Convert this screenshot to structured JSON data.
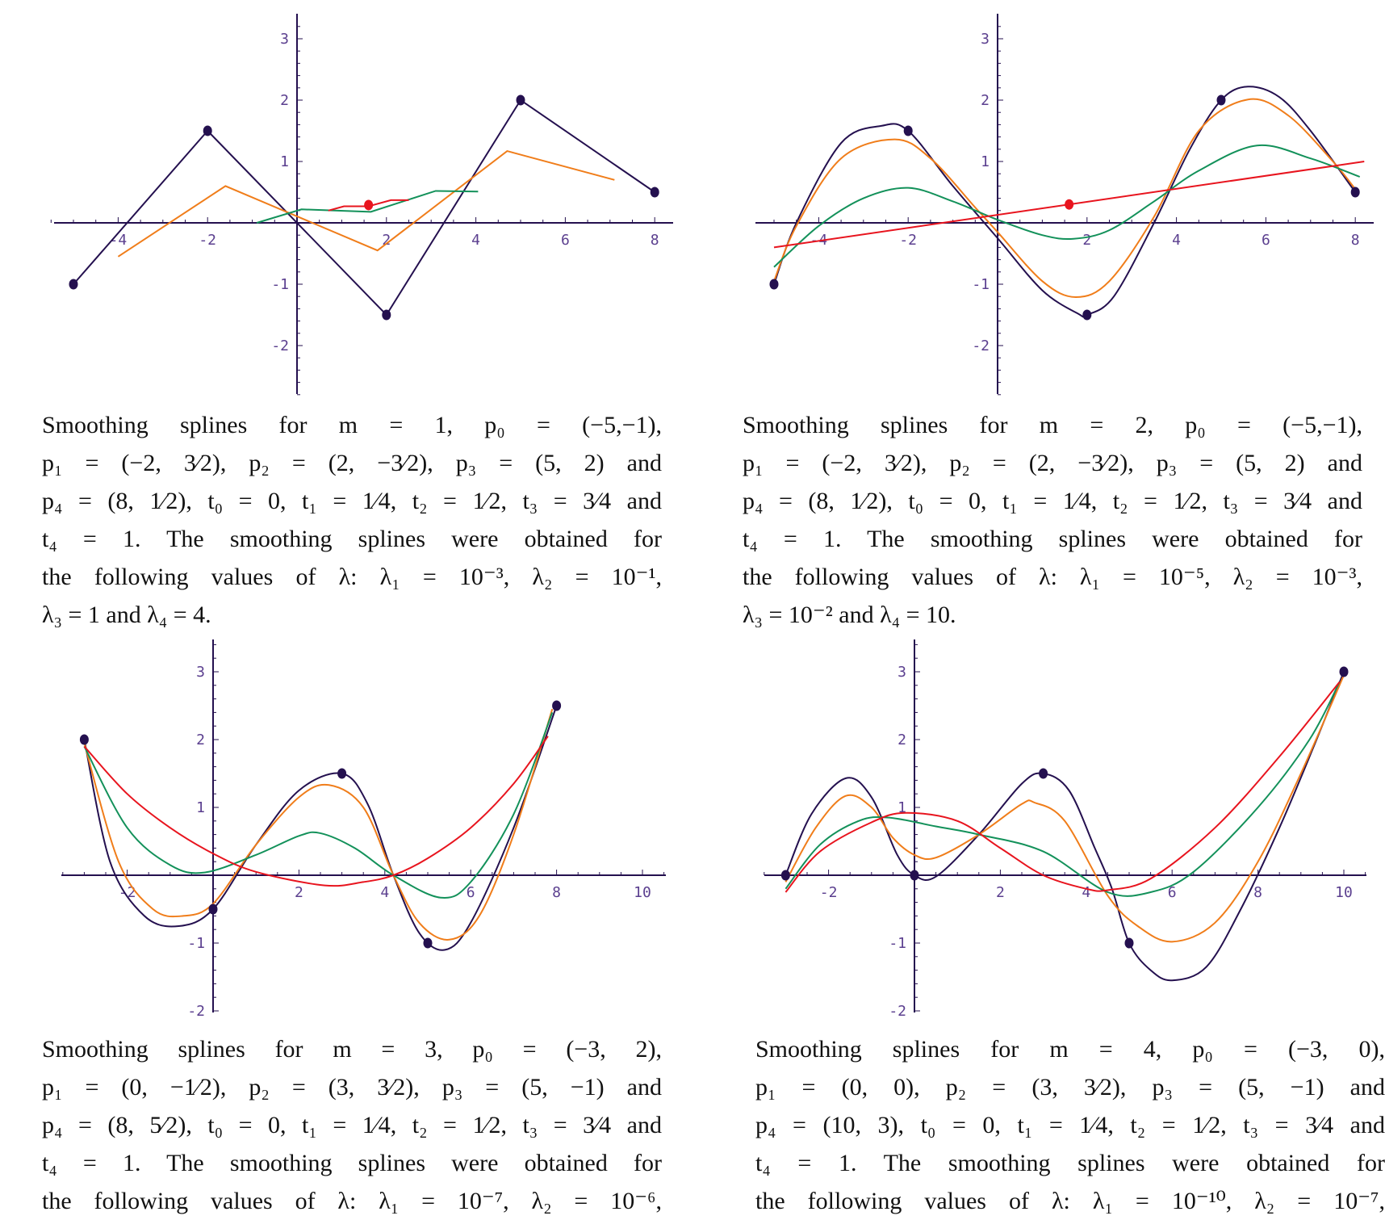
{
  "colors": {
    "data_points": "#24104f",
    "lambda1": "#24104f",
    "lambda2": "#f07d1a",
    "lambda3": "#13915a",
    "lambda4": "#e8141e",
    "axis": "#24104f",
    "tick_label": "#5b3f8f"
  },
  "chart_data": [
    {
      "type": "line",
      "interpolation": "linear",
      "xticks": [
        "-4",
        "-2",
        "2",
        "4",
        "6",
        "8"
      ],
      "xtick_values": [
        -4,
        -2,
        2,
        4,
        6,
        8
      ],
      "yticks": [
        "3",
        "2",
        "1",
        "-1",
        "-2"
      ],
      "ytick_values": [
        3,
        2,
        1,
        -1,
        -2
      ],
      "xlim": [
        -5.5,
        8.3
      ],
      "ylim": [
        -2.8,
        3.4
      ],
      "grid": false,
      "data_points": [
        [
          -5,
          -1
        ],
        [
          -2,
          1.5
        ],
        [
          2,
          -1.5
        ],
        [
          5,
          2
        ],
        [
          8,
          0.5
        ]
      ],
      "highlight_point": [
        1.6,
        0.29
      ],
      "series": [
        {
          "color_key": "lambda1",
          "points": [
            [
              -5,
              -1
            ],
            [
              -2,
              1.5
            ],
            [
              2,
              -1.5
            ],
            [
              5,
              2
            ],
            [
              8,
              0.5
            ]
          ]
        },
        {
          "color_key": "lambda2",
          "points": [
            [
              -4,
              -0.55
            ],
            [
              -1.6,
              0.6
            ],
            [
              1.8,
              -0.45
            ],
            [
              4.7,
              1.17
            ],
            [
              7.1,
              0.7
            ]
          ]
        },
        {
          "color_key": "lambda3",
          "points": [
            [
              -0.9,
              0
            ],
            [
              0.1,
              0.22
            ],
            [
              1.65,
              0.18
            ],
            [
              3.1,
              0.52
            ],
            [
              4.05,
              0.51
            ]
          ]
        },
        {
          "color_key": "lambda4",
          "points": [
            [
              0.7,
              0.2
            ],
            [
              1.05,
              0.27
            ],
            [
              1.6,
              0.27
            ],
            [
              2.1,
              0.37
            ],
            [
              2.5,
              0.37
            ]
          ]
        }
      ]
    },
    {
      "type": "line",
      "interpolation": "smooth",
      "xticks": [
        "-4",
        "-2",
        "2",
        "4",
        "6",
        "8"
      ],
      "xtick_values": [
        -4,
        -2,
        2,
        4,
        6,
        8
      ],
      "yticks": [
        "3",
        "2",
        "1",
        "-1",
        "-2"
      ],
      "ytick_values": [
        3,
        2,
        1,
        -1,
        -2
      ],
      "xlim": [
        -5.4,
        8.3
      ],
      "ylim": [
        -2.8,
        3.4
      ],
      "grid": false,
      "data_points": [
        [
          -5,
          -1
        ],
        [
          -2,
          1.5
        ],
        [
          2,
          -1.5
        ],
        [
          5,
          2
        ],
        [
          8,
          0.5
        ]
      ],
      "highlight_point": [
        1.6,
        0.3
      ],
      "series": [
        {
          "color_key": "lambda1",
          "points": [
            [
              -5,
              -1
            ],
            [
              -4.5,
              0
            ],
            [
              -3.5,
              1.3
            ],
            [
              -2.6,
              1.58
            ],
            [
              -2,
              1.5
            ],
            [
              -1,
              0.6
            ],
            [
              0,
              -0.25
            ],
            [
              1,
              -1.1
            ],
            [
              1.8,
              -1.48
            ],
            [
              2,
              -1.5
            ],
            [
              2.6,
              -1.2
            ],
            [
              3.5,
              0
            ],
            [
              4.3,
              1.2
            ],
            [
              5,
              2
            ],
            [
              5.6,
              2.22
            ],
            [
              6.3,
              2.05
            ],
            [
              7,
              1.5
            ],
            [
              8,
              0.5
            ]
          ]
        },
        {
          "color_key": "lambda2",
          "points": [
            [
              -5,
              -0.95
            ],
            [
              -4.5,
              -0.05
            ],
            [
              -3.5,
              1.05
            ],
            [
              -2.3,
              1.36
            ],
            [
              -1.5,
              1.05
            ],
            [
              -0.5,
              0.25
            ],
            [
              0,
              -0.15
            ],
            [
              1,
              -0.95
            ],
            [
              1.75,
              -1.21
            ],
            [
              2.5,
              -0.95
            ],
            [
              3.5,
              0.1
            ],
            [
              4.5,
              1.5
            ],
            [
              5.6,
              2.01
            ],
            [
              6.5,
              1.75
            ],
            [
              7.5,
              1.0
            ],
            [
              8,
              0.55
            ]
          ]
        },
        {
          "color_key": "lambda3",
          "points": [
            [
              -5,
              -0.72
            ],
            [
              -4,
              -0.05
            ],
            [
              -3,
              0.4
            ],
            [
              -2,
              0.57
            ],
            [
              -1,
              0.35
            ],
            [
              0,
              0.05
            ],
            [
              1,
              -0.2
            ],
            [
              1.7,
              -0.26
            ],
            [
              2.5,
              -0.12
            ],
            [
              3.5,
              0.35
            ],
            [
              4.5,
              0.85
            ],
            [
              5.8,
              1.26
            ],
            [
              7,
              1.05
            ],
            [
              8.1,
              0.75
            ]
          ]
        },
        {
          "color_key": "lambda4",
          "points": [
            [
              -5,
              -0.4
            ],
            [
              8.2,
              1.0
            ]
          ]
        }
      ]
    },
    {
      "type": "line",
      "interpolation": "smooth",
      "xticks": [
        "-2",
        "2",
        "4",
        "6",
        "8",
        "10"
      ],
      "xtick_values": [
        -2,
        2,
        4,
        6,
        8,
        10
      ],
      "yticks": [
        "3",
        "2",
        "1",
        "-1",
        "-2"
      ],
      "ytick_values": [
        3,
        2,
        1,
        -1,
        -2
      ],
      "xlim": [
        -3.5,
        10.5
      ],
      "ylim": [
        -2,
        3.5
      ],
      "grid": false,
      "data_points": [
        [
          -3,
          2
        ],
        [
          0,
          -0.5
        ],
        [
          3,
          1.5
        ],
        [
          5,
          -1
        ],
        [
          8,
          2.5
        ]
      ],
      "series": [
        {
          "color_key": "lambda1",
          "points": [
            [
              -3,
              2
            ],
            [
              -2.4,
              0.2
            ],
            [
              -1.6,
              -0.6
            ],
            [
              -0.8,
              -0.75
            ],
            [
              0,
              -0.5
            ],
            [
              1,
              0.45
            ],
            [
              2,
              1.25
            ],
            [
              3,
              1.5
            ],
            [
              3.6,
              1.05
            ],
            [
              4.2,
              0
            ],
            [
              4.8,
              -0.85
            ],
            [
              5.4,
              -1.1
            ],
            [
              6,
              -0.7
            ],
            [
              7,
              0.7
            ],
            [
              8,
              2.5
            ]
          ]
        },
        {
          "color_key": "lambda2",
          "points": [
            [
              -3,
              1.95
            ],
            [
              -2.2,
              0.2
            ],
            [
              -1.4,
              -0.5
            ],
            [
              -0.7,
              -0.6
            ],
            [
              0,
              -0.42
            ],
            [
              1,
              0.45
            ],
            [
              2,
              1.15
            ],
            [
              2.7,
              1.33
            ],
            [
              3.5,
              1.0
            ],
            [
              4.2,
              0
            ],
            [
              4.8,
              -0.7
            ],
            [
              5.5,
              -0.95
            ],
            [
              6.2,
              -0.6
            ],
            [
              7,
              0.6
            ],
            [
              7.9,
              2.45
            ]
          ]
        },
        {
          "color_key": "lambda3",
          "points": [
            [
              -3,
              1.9
            ],
            [
              -2,
              0.7
            ],
            [
              -1,
              0.15
            ],
            [
              -0.2,
              0.04
            ],
            [
              1,
              0.3
            ],
            [
              2,
              0.58
            ],
            [
              2.5,
              0.62
            ],
            [
              3.3,
              0.4
            ],
            [
              4.2,
              0
            ],
            [
              5.3,
              -0.33
            ],
            [
              6,
              -0.1
            ],
            [
              7,
              0.9
            ],
            [
              7.9,
              2.4
            ]
          ]
        },
        {
          "color_key": "lambda4",
          "points": [
            [
              -3,
              1.9
            ],
            [
              -2,
              1.2
            ],
            [
              -1,
              0.7
            ],
            [
              0,
              0.32
            ],
            [
              1,
              0.05
            ],
            [
              2.6,
              -0.15
            ],
            [
              3.5,
              -0.1
            ],
            [
              4.2,
              0
            ],
            [
              5,
              0.25
            ],
            [
              6,
              0.7
            ],
            [
              7,
              1.35
            ],
            [
              7.8,
              2.05
            ]
          ]
        }
      ]
    },
    {
      "type": "line",
      "interpolation": "smooth",
      "xticks": [
        "-2",
        "2",
        "4",
        "6",
        "8",
        "10"
      ],
      "xtick_values": [
        -2,
        2,
        4,
        6,
        8,
        10
      ],
      "yticks": [
        "3",
        "2",
        "1",
        "-1",
        "-2"
      ],
      "ytick_values": [
        3,
        2,
        1,
        -1,
        -2
      ],
      "xlim": [
        -3.6,
        10.6
      ],
      "ylim": [
        -2,
        3.5
      ],
      "grid": false,
      "data_points": [
        [
          -3,
          0
        ],
        [
          0,
          0
        ],
        [
          3,
          1.5
        ],
        [
          5,
          -1
        ],
        [
          10,
          3
        ]
      ],
      "series": [
        {
          "color_key": "lambda1",
          "points": [
            [
              -3,
              0
            ],
            [
              -2.4,
              0.9
            ],
            [
              -1.6,
              1.43
            ],
            [
              -1,
              1.15
            ],
            [
              -0.4,
              0.3
            ],
            [
              0,
              0
            ],
            [
              0.5,
              -0.02
            ],
            [
              1.5,
              0.6
            ],
            [
              2.5,
              1.35
            ],
            [
              3,
              1.5
            ],
            [
              3.6,
              1.25
            ],
            [
              4.2,
              0.4
            ],
            [
              4.6,
              -0.2
            ],
            [
              5,
              -1
            ],
            [
              5.5,
              -1.4
            ],
            [
              6,
              -1.55
            ],
            [
              6.8,
              -1.35
            ],
            [
              7.6,
              -0.5
            ],
            [
              8.5,
              0.7
            ],
            [
              9.3,
              1.9
            ],
            [
              10,
              3
            ]
          ]
        },
        {
          "color_key": "lambda2",
          "points": [
            [
              -3,
              -0.1
            ],
            [
              -2.3,
              0.7
            ],
            [
              -1.6,
              1.17
            ],
            [
              -1,
              1.0
            ],
            [
              -0.5,
              0.55
            ],
            [
              0,
              0.3
            ],
            [
              0.5,
              0.26
            ],
            [
              1.5,
              0.6
            ],
            [
              2.5,
              1.05
            ],
            [
              2.8,
              1.07
            ],
            [
              3.5,
              0.8
            ],
            [
              4.5,
              -0.3
            ],
            [
              5.2,
              -0.75
            ],
            [
              6,
              -0.98
            ],
            [
              7,
              -0.7
            ],
            [
              8,
              0.2
            ],
            [
              9,
              1.5
            ],
            [
              10,
              2.95
            ]
          ]
        },
        {
          "color_key": "lambda3",
          "points": [
            [
              -3,
              -0.2
            ],
            [
              -2.2,
              0.45
            ],
            [
              -1.3,
              0.8
            ],
            [
              -0.6,
              0.85
            ],
            [
              0.5,
              0.72
            ],
            [
              1.5,
              0.6
            ],
            [
              3,
              0.35
            ],
            [
              4.5,
              -0.25
            ],
            [
              5.5,
              -0.25
            ],
            [
              6.5,
              0.05
            ],
            [
              8,
              1.0
            ],
            [
              9.2,
              2.0
            ],
            [
              9.9,
              2.85
            ]
          ]
        },
        {
          "color_key": "lambda4",
          "points": [
            [
              -3,
              -0.25
            ],
            [
              -2.2,
              0.35
            ],
            [
              -1,
              0.78
            ],
            [
              -0.2,
              0.92
            ],
            [
              1,
              0.8
            ],
            [
              2,
              0.4
            ],
            [
              3,
              0
            ],
            [
              4,
              -0.2
            ],
            [
              4.5,
              -0.22
            ],
            [
              5.5,
              -0.05
            ],
            [
              7,
              0.7
            ],
            [
              8.5,
              1.75
            ],
            [
              9.9,
              2.85
            ]
          ]
        }
      ]
    }
  ],
  "captions": [
    {
      "lines": [
        "Smoothing splines for m = 1, p₀ = (−5,−1),",
        "p₁ = (−2, 3⁄2), p₂ = (2, −3⁄2), p₃ = (5, 2) and",
        "p₄ = (8, 1⁄2), t₀ = 0, t₁ = 1⁄4, t₂ = 1⁄2, t₃ = 3⁄4 and",
        "t₄ = 1. The smoothing splines were obtained for",
        "the following values of λ: λ₁ = 10⁻³, λ₂ = 10⁻¹,",
        "λ₃ = 1 and λ₄ = 4."
      ]
    },
    {
      "lines": [
        "Smoothing splines for m = 2, p₀ = (−5,−1),",
        "p₁ = (−2, 3⁄2), p₂ = (2, −3⁄2), p₃ = (5, 2) and",
        "p₄ = (8, 1⁄2), t₀ = 0, t₁ = 1⁄4, t₂ = 1⁄2, t₃ = 3⁄4 and",
        "t₄ = 1. The smoothing splines were obtained for",
        "the following values of λ: λ₁ = 10⁻⁵, λ₂ = 10⁻³,",
        "λ₃ = 10⁻² and λ₄ = 10."
      ]
    },
    {
      "lines": [
        "Smoothing splines for m = 3, p₀ = (−3, 2),",
        "p₁ = (0, −1⁄2), p₂ = (3, 3⁄2), p₃ = (5, −1) and",
        "p₄ = (8, 5⁄2), t₀ = 0, t₁ = 1⁄4, t₂ = 1⁄2, t₃ = 3⁄4 and",
        "t₄ = 1. The smoothing splines were obtained for",
        "the following values of λ: λ₁ = 10⁻⁷, λ₂ = 10⁻⁶,"
      ]
    },
    {
      "lines": [
        "Smoothing splines for m = 4, p₀ = (−3, 0),",
        "p₁ = (0, 0), p₂ = (3, 3⁄2), p₃ = (5, −1) and",
        "p₄ = (10, 3), t₀ = 0, t₁ = 1⁄4, t₂ = 1⁄2, t₃ = 3⁄4 and",
        "t₄ = 1. The smoothing splines were obtained for",
        "the following values of λ: λ₁ = 10⁻¹⁰, λ₂ = 10⁻⁷,"
      ]
    }
  ]
}
